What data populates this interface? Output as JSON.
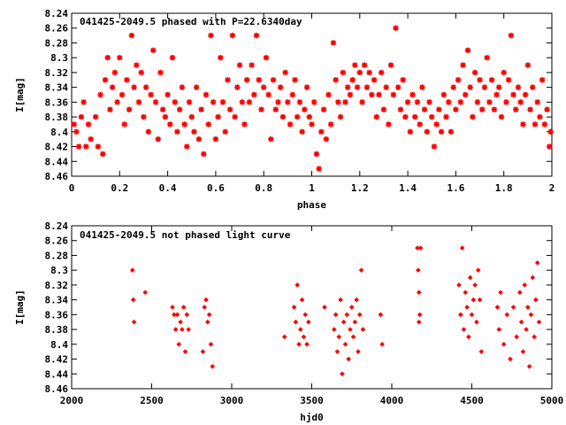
{
  "chart_data": [
    {
      "type": "scatter",
      "title": "041425-2049.5 phased with P=22.6340day",
      "xlabel": "phase",
      "ylabel": "I[mag]",
      "xlim": [
        0,
        2
      ],
      "ylim": [
        8.24,
        8.46
      ],
      "y_inverted": true,
      "marker": "asterisk",
      "color": "#ff0000",
      "xticks": [
        "0",
        "0.2",
        "0.4",
        "0.6",
        "0.8",
        "1",
        "1.2",
        "1.4",
        "1.6",
        "1.8",
        "2"
      ],
      "yticks": [
        "8.24",
        "8.26",
        "8.28",
        "8.3",
        "8.32",
        "8.34",
        "8.36",
        "8.38",
        "8.4",
        "8.42",
        "8.44",
        "8.46"
      ],
      "points": [
        [
          0.01,
          8.39
        ],
        [
          0.02,
          8.4
        ],
        [
          0.03,
          8.42
        ],
        [
          0.04,
          8.38
        ],
        [
          0.05,
          8.36
        ],
        [
          0.06,
          8.42
        ],
        [
          0.07,
          8.39
        ],
        [
          0.08,
          8.41
        ],
        [
          0.1,
          8.38
        ],
        [
          0.11,
          8.42
        ],
        [
          0.12,
          8.35
        ],
        [
          0.13,
          8.43
        ],
        [
          0.14,
          8.33
        ],
        [
          0.15,
          8.3
        ],
        [
          0.16,
          8.37
        ],
        [
          0.17,
          8.34
        ],
        [
          0.18,
          8.32
        ],
        [
          0.19,
          8.36
        ],
        [
          0.2,
          8.3
        ],
        [
          0.21,
          8.35
        ],
        [
          0.22,
          8.39
        ],
        [
          0.23,
          8.33
        ],
        [
          0.24,
          8.37
        ],
        [
          0.25,
          8.27
        ],
        [
          0.26,
          8.34
        ],
        [
          0.27,
          8.31
        ],
        [
          0.28,
          8.36
        ],
        [
          0.29,
          8.32
        ],
        [
          0.3,
          8.38
        ],
        [
          0.31,
          8.34
        ],
        [
          0.32,
          8.4
        ],
        [
          0.33,
          8.35
        ],
        [
          0.34,
          8.29
        ],
        [
          0.35,
          8.36
        ],
        [
          0.36,
          8.41
        ],
        [
          0.37,
          8.32
        ],
        [
          0.38,
          8.37
        ],
        [
          0.39,
          8.38
        ],
        [
          0.4,
          8.35
        ],
        [
          0.41,
          8.39
        ],
        [
          0.42,
          8.3
        ],
        [
          0.43,
          8.36
        ],
        [
          0.44,
          8.4
        ],
        [
          0.45,
          8.37
        ],
        [
          0.46,
          8.34
        ],
        [
          0.47,
          8.39
        ],
        [
          0.48,
          8.42
        ],
        [
          0.49,
          8.36
        ],
        [
          0.5,
          8.38
        ],
        [
          0.51,
          8.4
        ],
        [
          0.52,
          8.34
        ],
        [
          0.53,
          8.41
        ],
        [
          0.54,
          8.37
        ],
        [
          0.55,
          8.43
        ],
        [
          0.56,
          8.35
        ],
        [
          0.57,
          8.39
        ],
        [
          0.58,
          8.27
        ],
        [
          0.59,
          8.36
        ],
        [
          0.6,
          8.41
        ],
        [
          0.61,
          8.38
        ],
        [
          0.62,
          8.3
        ],
        [
          0.63,
          8.36
        ],
        [
          0.64,
          8.4
        ],
        [
          0.65,
          8.33
        ],
        [
          0.66,
          8.37
        ],
        [
          0.67,
          8.27
        ],
        [
          0.68,
          8.38
        ],
        [
          0.69,
          8.34
        ],
        [
          0.7,
          8.31
        ],
        [
          0.71,
          8.36
        ],
        [
          0.72,
          8.39
        ],
        [
          0.73,
          8.33
        ],
        [
          0.74,
          8.36
        ],
        [
          0.75,
          8.31
        ],
        [
          0.76,
          8.35
        ],
        [
          0.77,
          8.27
        ],
        [
          0.78,
          8.33
        ],
        [
          0.79,
          8.37
        ],
        [
          0.8,
          8.34
        ],
        [
          0.81,
          8.3
        ],
        [
          0.82,
          8.35
        ],
        [
          0.83,
          8.41
        ],
        [
          0.84,
          8.33
        ],
        [
          0.85,
          8.37
        ],
        [
          0.86,
          8.36
        ],
        [
          0.87,
          8.34
        ],
        [
          0.88,
          8.38
        ],
        [
          0.89,
          8.32
        ],
        [
          0.9,
          8.36
        ],
        [
          0.91,
          8.39
        ],
        [
          0.92,
          8.35
        ],
        [
          0.93,
          8.33
        ],
        [
          0.94,
          8.38
        ],
        [
          0.95,
          8.36
        ],
        [
          0.96,
          8.4
        ],
        [
          0.97,
          8.37
        ],
        [
          0.98,
          8.34
        ],
        [
          0.99,
          8.38
        ],
        [
          1.0,
          8.39
        ],
        [
          1.01,
          8.36
        ],
        [
          1.02,
          8.43
        ],
        [
          1.03,
          8.45
        ],
        [
          1.04,
          8.4
        ],
        [
          1.05,
          8.37
        ],
        [
          1.06,
          8.41
        ],
        [
          1.07,
          8.35
        ],
        [
          1.08,
          8.39
        ],
        [
          1.09,
          8.28
        ],
        [
          1.1,
          8.33
        ],
        [
          1.11,
          8.36
        ],
        [
          1.12,
          8.38
        ],
        [
          1.13,
          8.32
        ],
        [
          1.14,
          8.36
        ],
        [
          1.15,
          8.34
        ],
        [
          1.16,
          8.35
        ],
        [
          1.17,
          8.33
        ],
        [
          1.18,
          8.31
        ],
        [
          1.19,
          8.34
        ],
        [
          1.2,
          8.32
        ],
        [
          1.21,
          8.36
        ],
        [
          1.22,
          8.31
        ],
        [
          1.23,
          8.34
        ],
        [
          1.24,
          8.32
        ],
        [
          1.25,
          8.35
        ],
        [
          1.26,
          8.33
        ],
        [
          1.27,
          8.38
        ],
        [
          1.28,
          8.35
        ],
        [
          1.29,
          8.32
        ],
        [
          1.3,
          8.37
        ],
        [
          1.31,
          8.34
        ],
        [
          1.32,
          8.39
        ],
        [
          1.33,
          8.31
        ],
        [
          1.34,
          8.35
        ],
        [
          1.35,
          8.26
        ],
        [
          1.36,
          8.34
        ],
        [
          1.37,
          8.37
        ],
        [
          1.38,
          8.33
        ],
        [
          1.39,
          8.38
        ],
        [
          1.4,
          8.36
        ],
        [
          1.41,
          8.4
        ],
        [
          1.42,
          8.35
        ],
        [
          1.43,
          8.38
        ],
        [
          1.44,
          8.36
        ],
        [
          1.45,
          8.39
        ],
        [
          1.46,
          8.34
        ],
        [
          1.47,
          8.37
        ],
        [
          1.48,
          8.4
        ],
        [
          1.49,
          8.36
        ],
        [
          1.5,
          8.38
        ],
        [
          1.51,
          8.42
        ],
        [
          1.52,
          8.39
        ],
        [
          1.53,
          8.37
        ],
        [
          1.54,
          8.4
        ],
        [
          1.55,
          8.35
        ],
        [
          1.56,
          8.38
        ],
        [
          1.57,
          8.36
        ],
        [
          1.58,
          8.4
        ],
        [
          1.59,
          8.34
        ],
        [
          1.6,
          8.37
        ],
        [
          1.61,
          8.33
        ],
        [
          1.62,
          8.36
        ],
        [
          1.63,
          8.31
        ],
        [
          1.64,
          8.35
        ],
        [
          1.65,
          8.29
        ],
        [
          1.66,
          8.34
        ],
        [
          1.67,
          8.38
        ],
        [
          1.68,
          8.32
        ],
        [
          1.69,
          8.36
        ],
        [
          1.7,
          8.33
        ],
        [
          1.71,
          8.37
        ],
        [
          1.72,
          8.34
        ],
        [
          1.73,
          8.3
        ],
        [
          1.74,
          8.36
        ],
        [
          1.75,
          8.33
        ],
        [
          1.76,
          8.37
        ],
        [
          1.77,
          8.35
        ],
        [
          1.78,
          8.34
        ],
        [
          1.79,
          8.38
        ],
        [
          1.8,
          8.32
        ],
        [
          1.81,
          8.36
        ],
        [
          1.82,
          8.33
        ],
        [
          1.83,
          8.27
        ],
        [
          1.84,
          8.35
        ],
        [
          1.85,
          8.37
        ],
        [
          1.86,
          8.34
        ],
        [
          1.87,
          8.36
        ],
        [
          1.88,
          8.39
        ],
        [
          1.89,
          8.35
        ],
        [
          1.9,
          8.31
        ],
        [
          1.91,
          8.37
        ],
        [
          1.92,
          8.34
        ],
        [
          1.93,
          8.39
        ],
        [
          1.94,
          8.36
        ],
        [
          1.95,
          8.38
        ],
        [
          1.96,
          8.33
        ],
        [
          1.97,
          8.39
        ],
        [
          1.98,
          8.37
        ],
        [
          1.99,
          8.42
        ],
        [
          1.995,
          8.4
        ]
      ]
    },
    {
      "type": "scatter",
      "title": "041425-2049.5 not phased light curve",
      "xlabel": "hjd0",
      "ylabel": "I[mag]",
      "xlim": [
        2000,
        5000
      ],
      "ylim": [
        8.24,
        8.46
      ],
      "y_inverted": true,
      "marker": "diamond",
      "color": "#ff0000",
      "xticks": [
        "2000",
        "2500",
        "3000",
        "3500",
        "4000",
        "4500",
        "5000"
      ],
      "yticks": [
        "8.24",
        "8.26",
        "8.28",
        "8.3",
        "8.32",
        "8.34",
        "8.36",
        "8.38",
        "8.4",
        "8.42",
        "8.44",
        "8.46"
      ],
      "points": [
        [
          2380,
          8.3
        ],
        [
          2385,
          8.34
        ],
        [
          2390,
          8.37
        ],
        [
          2460,
          8.33
        ],
        [
          2630,
          8.35
        ],
        [
          2640,
          8.36
        ],
        [
          2650,
          8.38
        ],
        [
          2660,
          8.36
        ],
        [
          2670,
          8.4
        ],
        [
          2680,
          8.37
        ],
        [
          2690,
          8.38
        ],
        [
          2700,
          8.35
        ],
        [
          2710,
          8.41
        ],
        [
          2720,
          8.36
        ],
        [
          2730,
          8.38
        ],
        [
          2820,
          8.41
        ],
        [
          2830,
          8.35
        ],
        [
          2840,
          8.34
        ],
        [
          2850,
          8.37
        ],
        [
          2860,
          8.36
        ],
        [
          2870,
          8.4
        ],
        [
          2880,
          8.43
        ],
        [
          3330,
          8.39
        ],
        [
          3390,
          8.35
        ],
        [
          3400,
          8.37
        ],
        [
          3410,
          8.32
        ],
        [
          3420,
          8.4
        ],
        [
          3430,
          8.38
        ],
        [
          3440,
          8.34
        ],
        [
          3450,
          8.39
        ],
        [
          3460,
          8.36
        ],
        [
          3470,
          8.4
        ],
        [
          3480,
          8.37
        ],
        [
          3580,
          8.35
        ],
        [
          3640,
          8.38
        ],
        [
          3650,
          8.36
        ],
        [
          3660,
          8.41
        ],
        [
          3670,
          8.39
        ],
        [
          3680,
          8.34
        ],
        [
          3690,
          8.44
        ],
        [
          3700,
          8.37
        ],
        [
          3710,
          8.4
        ],
        [
          3720,
          8.36
        ],
        [
          3730,
          8.42
        ],
        [
          3740,
          8.38
        ],
        [
          3750,
          8.35
        ],
        [
          3760,
          8.39
        ],
        [
          3770,
          8.37
        ],
        [
          3780,
          8.34
        ],
        [
          3790,
          8.41
        ],
        [
          3800,
          8.36
        ],
        [
          3810,
          8.3
        ],
        [
          3820,
          8.38
        ],
        [
          3930,
          8.36
        ],
        [
          3940,
          8.4
        ],
        [
          4160,
          8.27
        ],
        [
          4165,
          8.3
        ],
        [
          4170,
          8.33
        ],
        [
          4175,
          8.36
        ],
        [
          4180,
          8.27
        ],
        [
          4170,
          8.37
        ],
        [
          4420,
          8.32
        ],
        [
          4430,
          8.36
        ],
        [
          4440,
          8.27
        ],
        [
          4450,
          8.38
        ],
        [
          4460,
          8.33
        ],
        [
          4470,
          8.35
        ],
        [
          4480,
          8.39
        ],
        [
          4490,
          8.31
        ],
        [
          4500,
          8.36
        ],
        [
          4510,
          8.34
        ],
        [
          4520,
          8.32
        ],
        [
          4530,
          8.37
        ],
        [
          4540,
          8.3
        ],
        [
          4550,
          8.34
        ],
        [
          4560,
          8.41
        ],
        [
          4660,
          8.35
        ],
        [
          4670,
          8.38
        ],
        [
          4680,
          8.33
        ],
        [
          4700,
          8.4
        ],
        [
          4720,
          8.36
        ],
        [
          4740,
          8.42
        ],
        [
          4760,
          8.35
        ],
        [
          4780,
          8.39
        ],
        [
          4800,
          8.33
        ],
        [
          4810,
          8.37
        ],
        [
          4820,
          8.41
        ],
        [
          4830,
          8.32
        ],
        [
          4840,
          8.38
        ],
        [
          4850,
          8.35
        ],
        [
          4860,
          8.43
        ],
        [
          4870,
          8.36
        ],
        [
          4880,
          8.31
        ],
        [
          4890,
          8.39
        ],
        [
          4900,
          8.34
        ],
        [
          4910,
          8.29
        ],
        [
          4920,
          8.37
        ]
      ]
    }
  ]
}
